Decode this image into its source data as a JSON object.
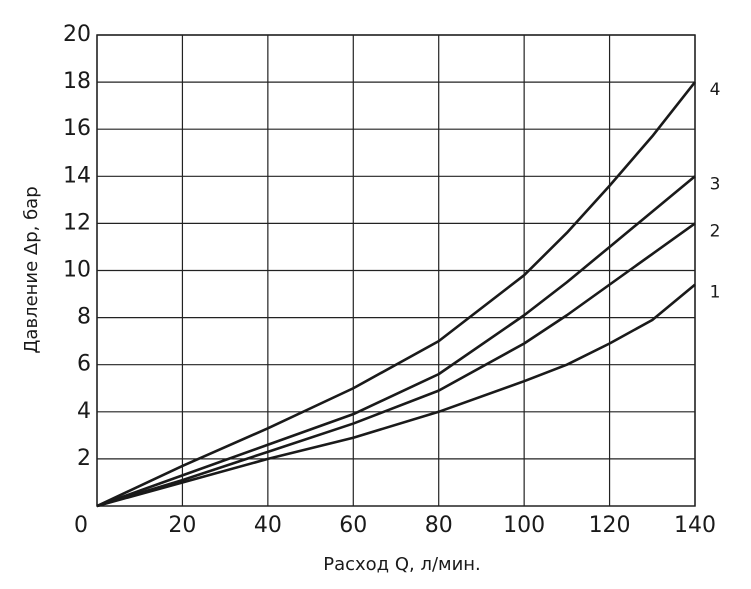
{
  "chart_data": {
    "type": "line",
    "x_label": "Расход Q, л/мин.",
    "y_label": "Давление Δр, бар",
    "x": [
      0,
      20,
      40,
      60,
      80,
      100,
      110,
      120,
      130,
      140
    ],
    "series": [
      {
        "name": "1",
        "color": "#1a1a1a",
        "values": [
          0,
          1.0,
          2.0,
          2.9,
          4.0,
          5.3,
          6.0,
          6.9,
          7.9,
          9.4
        ]
      },
      {
        "name": "2",
        "color": "#1a1a1a",
        "values": [
          0,
          1.1,
          2.3,
          3.5,
          4.9,
          6.9,
          8.1,
          9.4,
          10.7,
          12
        ]
      },
      {
        "name": "3",
        "color": "#1a1a1a",
        "values": [
          0,
          1.3,
          2.6,
          3.9,
          5.6,
          8.1,
          9.5,
          11.0,
          12.5,
          14
        ]
      },
      {
        "name": "4",
        "color": "#1a1a1a",
        "values": [
          0,
          1.7,
          3.3,
          5.0,
          7.0,
          9.8,
          11.6,
          13.6,
          15.7,
          18
        ]
      }
    ],
    "xlim": [
      0,
      140
    ],
    "ylim": [
      0,
      20
    ],
    "xticks": [
      0,
      20,
      40,
      60,
      80,
      100,
      120,
      140
    ],
    "yticks": [
      2,
      4,
      6,
      8,
      10,
      12,
      14,
      16,
      18,
      20
    ],
    "grid": true
  }
}
